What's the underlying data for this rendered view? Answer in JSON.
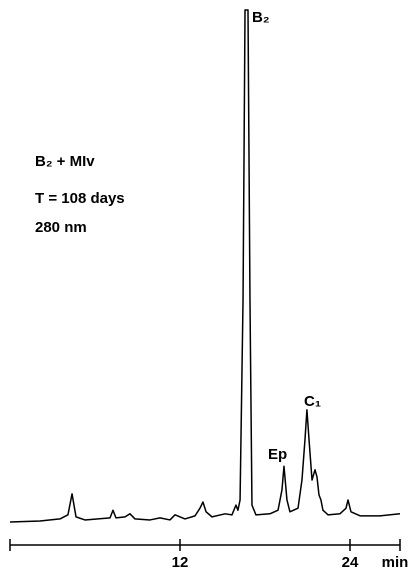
{
  "chart_data": {
    "type": "line",
    "annotations": [
      "B₂",
      "Ep",
      "C₁",
      "B₂ + MIv",
      "T = 108 days",
      "280 nm"
    ],
    "xlabel": "min",
    "xlim": [
      0,
      27.53
    ],
    "xticks": [
      0,
      12,
      24
    ],
    "ylim": [
      0,
      100
    ],
    "series": [
      {
        "color": "#000000",
        "x": [
          0,
          2.12,
          3.53,
          4.09,
          4.38,
          4.66,
          5.29,
          7.06,
          7.27,
          7.48,
          8.12,
          8.47,
          8.82,
          9.88,
          10.59,
          11.29,
          11.65,
          12.35,
          13.06,
          13.41,
          13.62,
          13.84,
          14.26,
          15.18,
          15.67,
          15.95,
          16.09,
          16.24,
          16.45,
          16.59,
          16.66,
          16.8,
          16.94,
          17.08,
          17.36,
          18.35,
          18.92,
          19.2,
          19.34,
          19.55,
          19.76,
          20.33,
          20.61,
          20.82,
          20.96,
          21.11,
          21.32,
          21.53,
          21.67,
          21.81,
          21.95,
          22.09,
          22.45,
          23.29,
          23.72,
          23.86,
          24.07,
          24.71,
          26.12,
          27.53
        ],
        "values": [
          0,
          0.2,
          0.6,
          1.4,
          5.5,
          1,
          0.4,
          0.8,
          2.3,
          0.8,
          1,
          1.6,
          0.6,
          0.4,
          0.8,
          0.4,
          1.4,
          0.6,
          1.2,
          2.7,
          3.9,
          2,
          1,
          1.6,
          1.4,
          3.3,
          2.3,
          4.3,
          43.4,
          100,
          100,
          100,
          43.4,
          3.3,
          1.4,
          1.6,
          2.3,
          6.3,
          10.9,
          4.3,
          2,
          2.7,
          8.2,
          16,
          21.9,
          16,
          8.2,
          10.2,
          8.8,
          5.3,
          4.3,
          2.3,
          1.4,
          1.6,
          2.7,
          4.3,
          2,
          1.2,
          1.2,
          1.6
        ]
      }
    ]
  }
}
